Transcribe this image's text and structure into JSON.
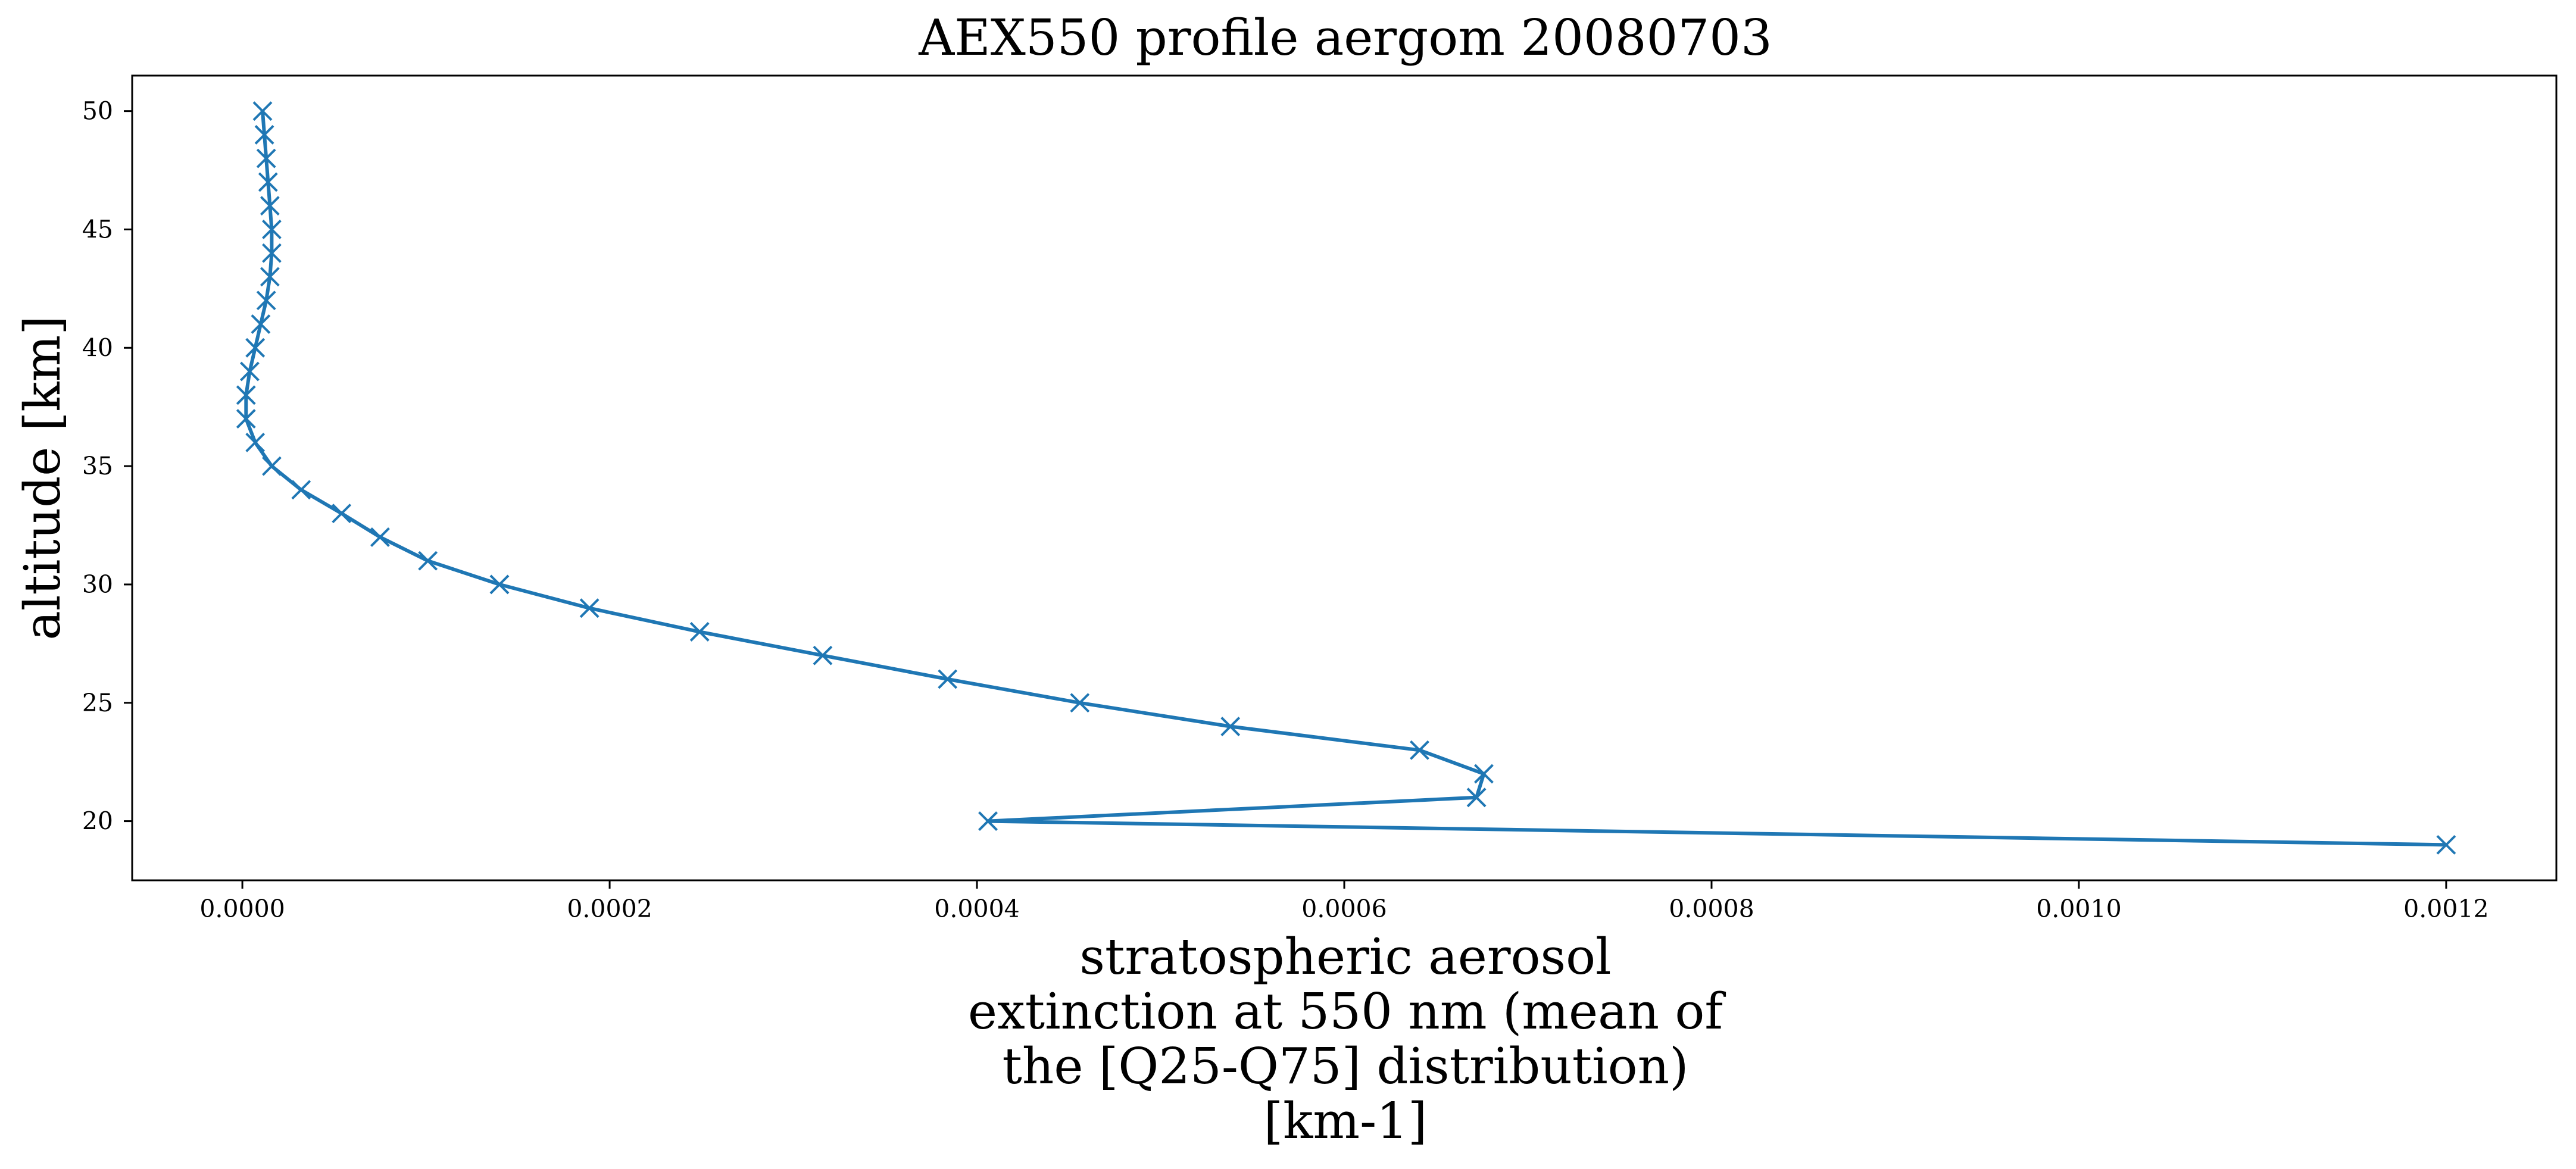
{
  "chart_data": {
    "type": "line",
    "title": "AEX550 profile aergom 20080703",
    "xlabel": [
      "stratospheric aerosol",
      "extinction at 550 nm (mean of",
      "the [Q25-Q75] distribution)",
      "[km-1]"
    ],
    "ylabel": "altitude [km]",
    "xlim": [
      -6e-05,
      0.00126
    ],
    "ylim": [
      17.5,
      51.5
    ],
    "x_ticks": [
      {
        "value": 0.0,
        "label": "0.0000"
      },
      {
        "value": 0.0002,
        "label": "0.0002"
      },
      {
        "value": 0.0004,
        "label": "0.0004"
      },
      {
        "value": 0.0006,
        "label": "0.0006"
      },
      {
        "value": 0.0008,
        "label": "0.0008"
      },
      {
        "value": 0.001,
        "label": "0.0010"
      },
      {
        "value": 0.0012,
        "label": "0.0012"
      }
    ],
    "y_ticks": [
      {
        "value": 20,
        "label": "20"
      },
      {
        "value": 25,
        "label": "25"
      },
      {
        "value": 30,
        "label": "30"
      },
      {
        "value": 35,
        "label": "35"
      },
      {
        "value": 40,
        "label": "40"
      },
      {
        "value": 45,
        "label": "45"
      },
      {
        "value": 50,
        "label": "50"
      }
    ],
    "grid": false,
    "marker": "x",
    "color": "#1f77b4",
    "series": [
      {
        "points": [
          {
            "x": 0.0012,
            "y": 19
          },
          {
            "x": 0.000406,
            "y": 20
          },
          {
            "x": 0.000672,
            "y": 21
          },
          {
            "x": 0.000676,
            "y": 22
          },
          {
            "x": 0.000641,
            "y": 23
          },
          {
            "x": 0.000538,
            "y": 24
          },
          {
            "x": 0.000456,
            "y": 25
          },
          {
            "x": 0.000384,
            "y": 26
          },
          {
            "x": 0.000316,
            "y": 27
          },
          {
            "x": 0.000249,
            "y": 28
          },
          {
            "x": 0.000189,
            "y": 29
          },
          {
            "x": 0.00014,
            "y": 30
          },
          {
            "x": 0.000101,
            "y": 31
          },
          {
            "x": 7.5e-05,
            "y": 32
          },
          {
            "x": 5.4e-05,
            "y": 33
          },
          {
            "x": 3.2e-05,
            "y": 34
          },
          {
            "x": 1.6e-05,
            "y": 35
          },
          {
            "x": 7e-06,
            "y": 36
          },
          {
            "x": 2e-06,
            "y": 37
          },
          {
            "x": 2e-06,
            "y": 38
          },
          {
            "x": 4e-06,
            "y": 39
          },
          {
            "x": 7e-06,
            "y": 40
          },
          {
            "x": 1e-05,
            "y": 41
          },
          {
            "x": 1.3e-05,
            "y": 42
          },
          {
            "x": 1.5e-05,
            "y": 43
          },
          {
            "x": 1.6e-05,
            "y": 44
          },
          {
            "x": 1.6e-05,
            "y": 45
          },
          {
            "x": 1.5e-05,
            "y": 46
          },
          {
            "x": 1.4e-05,
            "y": 47
          },
          {
            "x": 1.3e-05,
            "y": 48
          },
          {
            "x": 1.2e-05,
            "y": 49
          },
          {
            "x": 1.1e-05,
            "y": 50
          }
        ]
      }
    ]
  }
}
